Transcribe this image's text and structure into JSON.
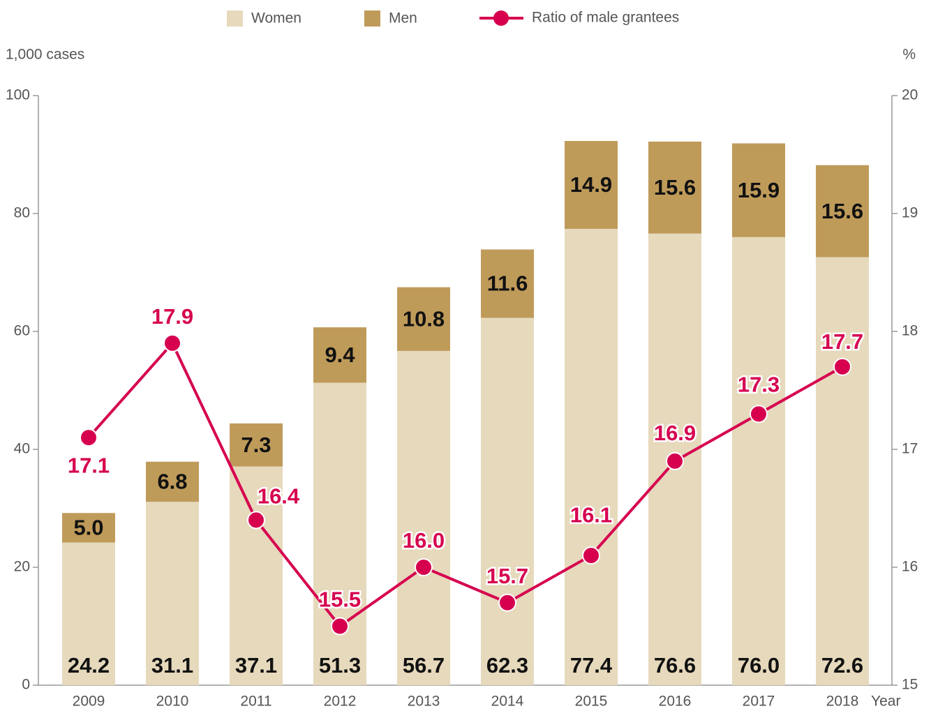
{
  "chart_data": {
    "type": "bar",
    "categories": [
      "2009",
      "2010",
      "2011",
      "2012",
      "2013",
      "2014",
      "2015",
      "2016",
      "2017",
      "2018"
    ],
    "series": [
      {
        "name": "Women",
        "color": "#e6d9bc",
        "stack": true,
        "values": [
          24.2,
          31.1,
          37.1,
          51.3,
          56.7,
          62.3,
          77.4,
          76.6,
          76.0,
          72.6
        ],
        "value_labels": [
          "24.2",
          "31.1",
          "37.1",
          "51.3",
          "56.7",
          "62.3",
          "77.4",
          "76.6",
          "76.0",
          "72.6"
        ]
      },
      {
        "name": "Men",
        "color": "#bf9b5a",
        "stack": true,
        "values": [
          5.0,
          6.8,
          7.3,
          9.4,
          10.8,
          11.6,
          14.9,
          15.6,
          15.9,
          15.6
        ],
        "value_labels": [
          "5.0",
          "6.8",
          "7.3",
          "9.4",
          "10.8",
          "11.6",
          "14.9",
          "15.6",
          "15.9",
          "15.6"
        ]
      },
      {
        "name": "Ratio of male grantees",
        "color": "#d6004f",
        "type": "line",
        "axis": "y2",
        "values": [
          17.1,
          17.9,
          16.4,
          15.5,
          16.0,
          15.7,
          16.1,
          16.9,
          17.3,
          17.7
        ],
        "value_labels": [
          "17.1",
          "17.9",
          "16.4",
          "15.5",
          "16.0",
          "15.7",
          "16.1",
          "16.9",
          "17.3",
          "17.7"
        ]
      }
    ],
    "y_label": "1,000 cases",
    "y2_label": "%",
    "x_label": "Year",
    "ylim": [
      0,
      100
    ],
    "yticks": [
      0,
      20,
      40,
      60,
      80,
      100
    ],
    "y2lim": [
      15,
      20
    ],
    "y2ticks": [
      15,
      16,
      17,
      18,
      19,
      20
    ]
  }
}
